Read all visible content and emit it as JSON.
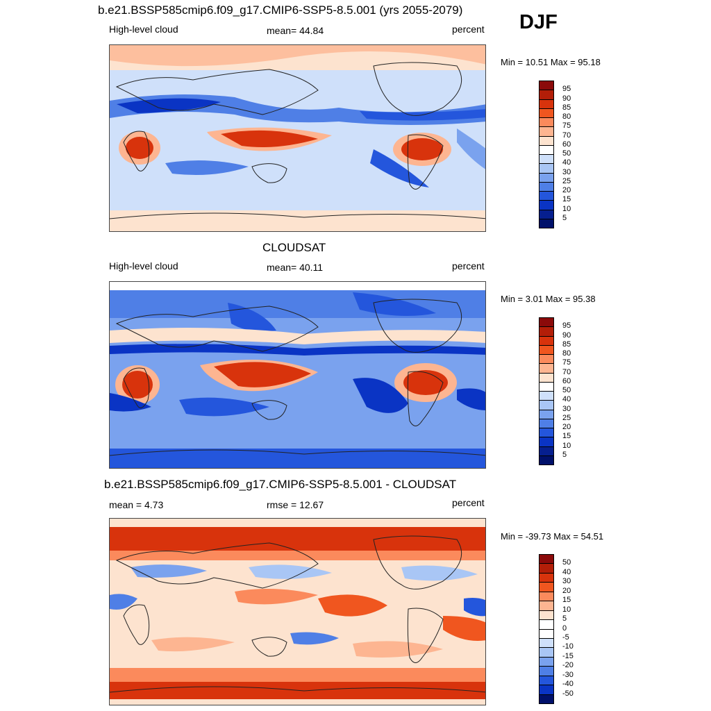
{
  "season": "DJF",
  "panels": [
    {
      "title": "b.e21.BSSP585cmip6.f09_g17.CMIP6-SSP5-8.5.001 (yrs 2055-2079)",
      "left_label": "High-level cloud",
      "center_label": "mean=  44.84",
      "right_label": "percent",
      "minmax": "Min =  10.51 Max =  95.18",
      "colorbar": {
        "labels": [
          "95",
          "90",
          "85",
          "80",
          "75",
          "70",
          "60",
          "50",
          "40",
          "30",
          "25",
          "20",
          "15",
          "10",
          "5"
        ],
        "colors": [
          "#8b0a0a",
          "#b31e08",
          "#d8330c",
          "#f0561f",
          "#fb8a5c",
          "#fdb591",
          "#fde3cf",
          "#ffffff",
          "#cfe0fa",
          "#a9c6f5",
          "#7aa2ee",
          "#4f7fe6",
          "#2456dc",
          "#0a34c4",
          "#061f8f",
          "#00106a"
        ]
      }
    },
    {
      "title": "CLOUDSAT",
      "left_label": "High-level cloud",
      "center_label": "mean=  40.11",
      "right_label": "percent",
      "minmax": "Min =   3.01 Max =  95.38",
      "colorbar": {
        "labels": [
          "95",
          "90",
          "85",
          "80",
          "75",
          "70",
          "60",
          "50",
          "40",
          "30",
          "25",
          "20",
          "15",
          "10",
          "5"
        ],
        "colors": [
          "#8b0a0a",
          "#b31e08",
          "#d8330c",
          "#f0561f",
          "#fb8a5c",
          "#fdb591",
          "#fde3cf",
          "#ffffff",
          "#cfe0fa",
          "#a9c6f5",
          "#7aa2ee",
          "#4f7fe6",
          "#2456dc",
          "#0a34c4",
          "#061f8f",
          "#00106a"
        ]
      }
    },
    {
      "title": "b.e21.BSSP585cmip6.f09_g17.CMIP6-SSP5-8.5.001 - CLOUDSAT",
      "left_label": "mean =   4.73",
      "center_label": "rmse =  12.67",
      "right_label": "percent",
      "minmax": "Min = -39.73 Max =  54.51",
      "colorbar": {
        "labels": [
          "50",
          "40",
          "30",
          "20",
          "15",
          "10",
          "5",
          "0",
          "-5",
          "-10",
          "-15",
          "-20",
          "-30",
          "-40",
          "-50"
        ],
        "colors": [
          "#8b0a0a",
          "#b31e08",
          "#d8330c",
          "#f0561f",
          "#fb8a5c",
          "#fdb591",
          "#fde3cf",
          "#ffffff",
          "#ffffff",
          "#cfe0fa",
          "#a9c6f5",
          "#7aa2ee",
          "#4f7fe6",
          "#2456dc",
          "#0a34c4",
          "#00106a"
        ]
      }
    }
  ],
  "map_theme": {
    "high": "#d8330c",
    "mid_high": "#fdb591",
    "neutral": "#cfe0fa",
    "low": "#4f7fe6",
    "very_low": "#0a34c4",
    "coast": "#222222"
  }
}
